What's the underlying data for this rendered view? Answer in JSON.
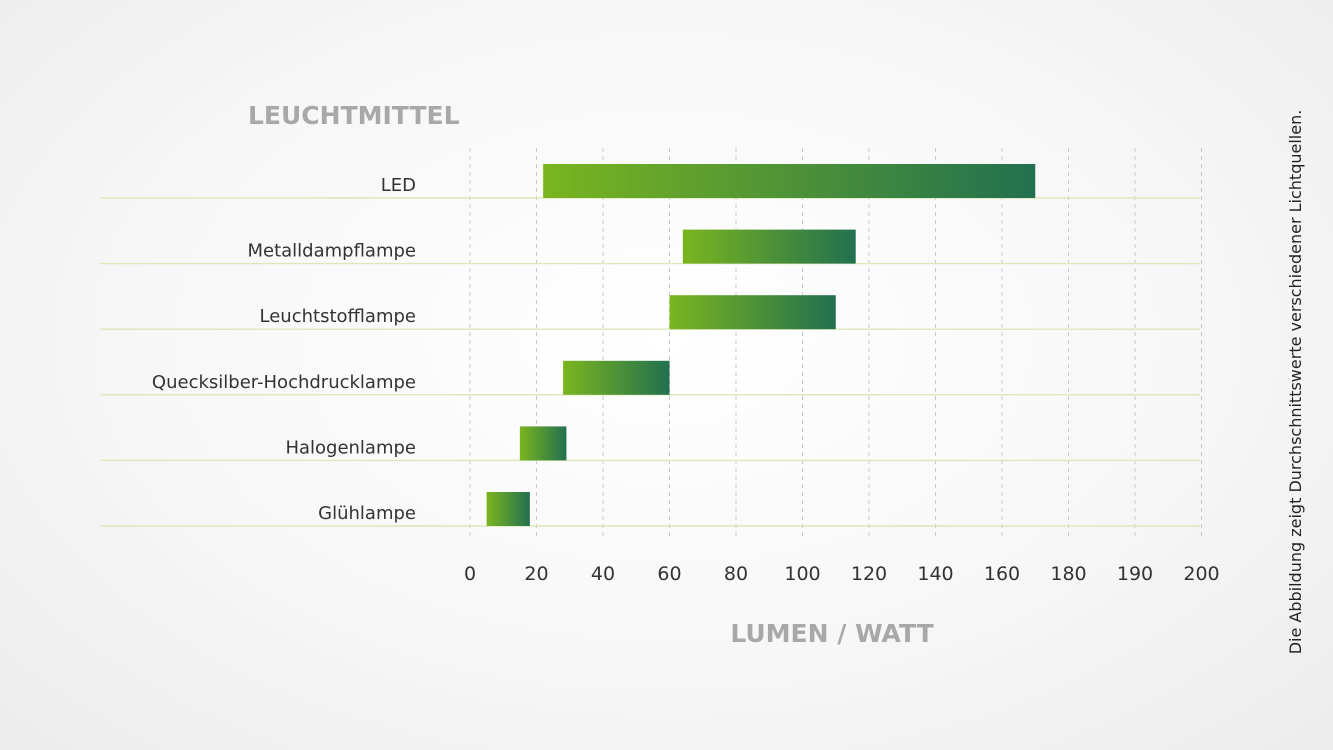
{
  "caption": "Die Abbildung zeigt Durchschnittswerte verschiedener Lichtquellen.",
  "colors": {
    "bar_start": "#7ab51f",
    "bar_end": "#22704f",
    "row_line": "#dbe9b8",
    "grid": "#c9c9c9",
    "axis_title": "#a8a8a8"
  },
  "chart_data": {
    "type": "bar",
    "orientation": "horizontal",
    "title": "",
    "ylabel": "LEUCHTMITTEL",
    "xlabel": "LUMEN / WATT",
    "x_tick_labels": [
      "0",
      "20",
      "40",
      "60",
      "80",
      "100",
      "120",
      "140",
      "160",
      "180",
      "190",
      "200"
    ],
    "categories": [
      "LED",
      "Metalldampflampe",
      "Leuchtstofflampe",
      "Quecksilber-Hochdrucklampe",
      "Halogenlampe",
      "Glühlampe"
    ],
    "series": [
      {
        "ranges": [
          [
            22,
            170
          ],
          [
            64,
            116
          ],
          [
            60,
            110
          ],
          [
            28,
            60
          ],
          [
            15,
            29
          ],
          [
            5,
            18
          ]
        ]
      }
    ],
    "grid": true,
    "legend": "none"
  }
}
